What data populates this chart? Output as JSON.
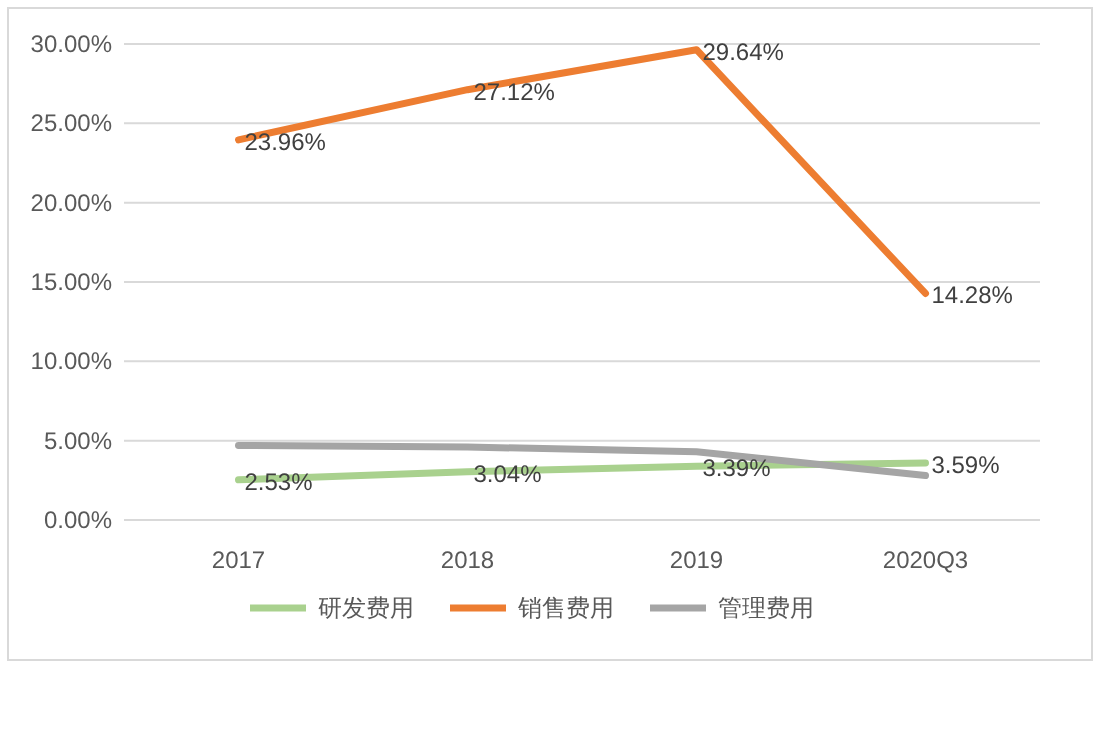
{
  "chart_data": {
    "type": "line",
    "categories": [
      "2017",
      "2018",
      "2019",
      "2020Q3"
    ],
    "series": [
      {
        "name": "研发费用",
        "color": "#a9d18e",
        "values": [
          2.53,
          3.04,
          3.39,
          3.59
        ],
        "value_labels": [
          "2.53%",
          "3.04%",
          "3.39%",
          "3.59%"
        ]
      },
      {
        "name": "销售费用",
        "color": "#ed7d31",
        "values": [
          23.96,
          27.12,
          29.64,
          14.28
        ],
        "value_labels": [
          "23.96%",
          "27.12%",
          "29.64%",
          "14.28%"
        ]
      },
      {
        "name": "管理费用",
        "color": "#a5a5a5",
        "values": [
          4.7,
          4.6,
          4.3,
          2.8
        ]
      }
    ],
    "ylim": [
      0,
      30
    ],
    "yticks": [
      {
        "value": 0,
        "label": "0.00%"
      },
      {
        "value": 5,
        "label": "5.00%"
      },
      {
        "value": 10,
        "label": "10.00%"
      },
      {
        "value": 15,
        "label": "15.00%"
      },
      {
        "value": 20,
        "label": "20.00%"
      },
      {
        "value": 25,
        "label": "25.00%"
      },
      {
        "value": 30,
        "label": "30.00%"
      }
    ],
    "grid": "y",
    "legend": "bottom",
    "marker": "none",
    "line_style": "solid"
  }
}
